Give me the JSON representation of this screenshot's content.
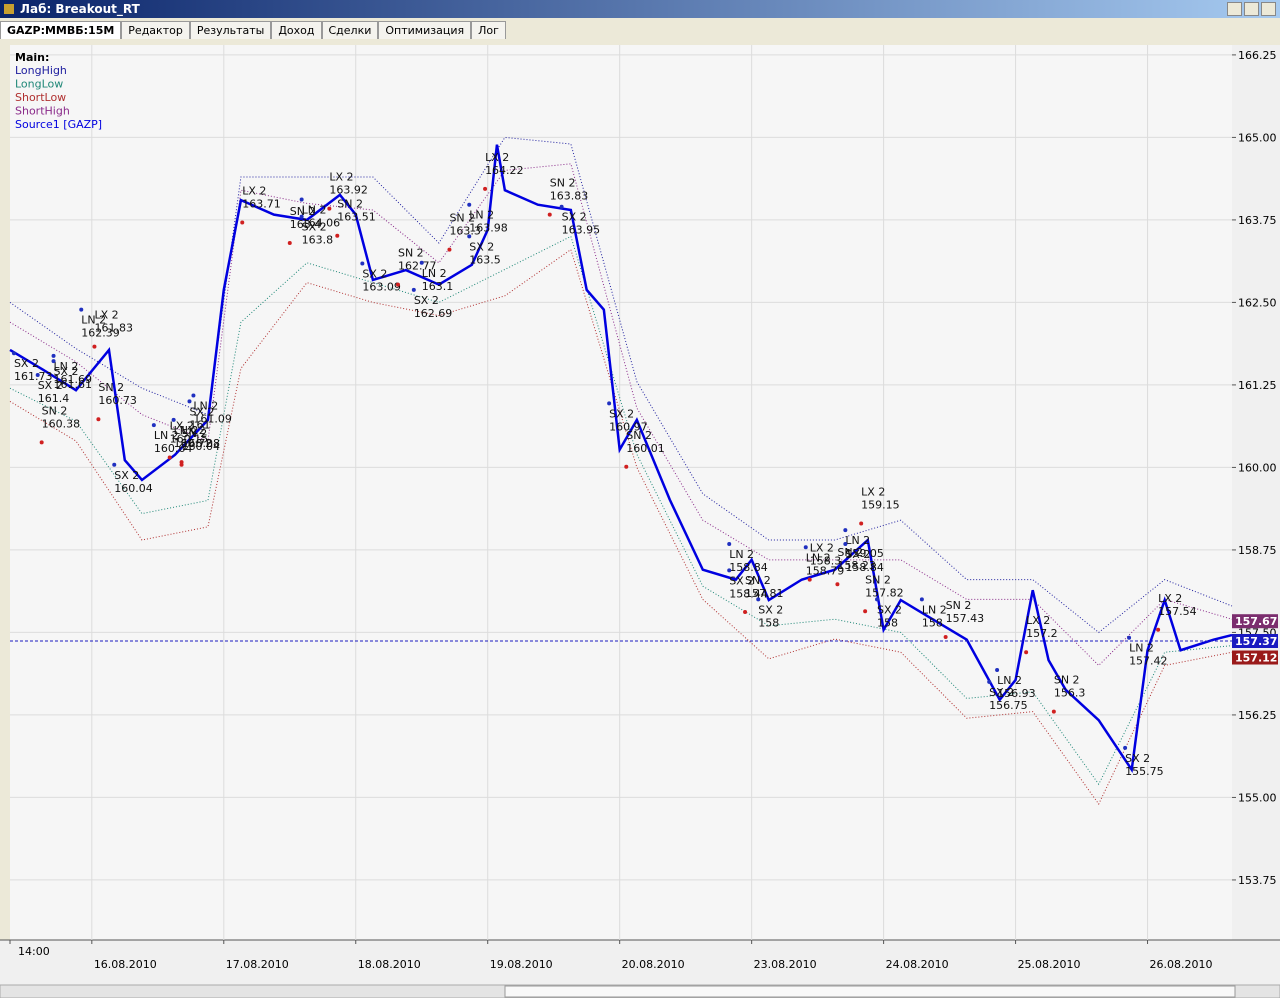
{
  "window": {
    "title": "Лаб: Breakout_RT",
    "tabs": [
      "GAZP:ММВБ:15M",
      "Редактор",
      "Результаты",
      "Доход",
      "Сделки",
      "Оптимизация",
      "Лог"
    ]
  },
  "chart_data": {
    "type": "line",
    "legend_title": "Main:",
    "xlim": [
      -0.62,
      8.64
    ],
    "ylim": [
      152.84,
      166.4
    ],
    "xticks": [
      {
        "value": -0.62,
        "label": "14:00"
      },
      {
        "value": 0,
        "label": "16.08.2010"
      },
      {
        "value": 1,
        "label": "17.08.2010"
      },
      {
        "value": 2,
        "label": "18.08.2010"
      },
      {
        "value": 3,
        "label": "19.08.2010"
      },
      {
        "value": 4,
        "label": "20.08.2010"
      },
      {
        "value": 5,
        "label": "23.08.2010"
      },
      {
        "value": 6,
        "label": "24.08.2010"
      },
      {
        "value": 7,
        "label": "25.08.2010"
      },
      {
        "value": 8,
        "label": "26.08.2010"
      }
    ],
    "yticks": [
      {
        "value": 153.75,
        "label": "153.75"
      },
      {
        "value": 155,
        "label": "155.00"
      },
      {
        "value": 156.25,
        "label": "156.25"
      },
      {
        "value": 157.5,
        "label": "157.50"
      },
      {
        "value": 158.75,
        "label": "158.75"
      },
      {
        "value": 160,
        "label": "160.00"
      },
      {
        "value": 161.25,
        "label": "161.25"
      },
      {
        "value": 162.5,
        "label": "162.50"
      },
      {
        "value": 163.75,
        "label": "163.75"
      },
      {
        "value": 165,
        "label": "165.00"
      },
      {
        "value": 166.25,
        "label": "166.25"
      }
    ],
    "grid": true,
    "series": [
      {
        "name": "LongHigh",
        "color": "#2020a0",
        "dash": true,
        "x": [
          -0.62,
          -0.12,
          0.38,
          0.88,
          1.13,
          1.63,
          2.13,
          2.63,
          3.13,
          3.63,
          4.13,
          4.63,
          5.13,
          5.63,
          6.13,
          6.63,
          7.13,
          7.63,
          8.13,
          8.64
        ],
        "values": [
          162.5,
          161.8,
          161.2,
          160.8,
          164.4,
          164.4,
          164.4,
          163.4,
          165.0,
          164.9,
          161.3,
          159.6,
          158.9,
          158.9,
          159.2,
          158.3,
          158.3,
          157.5,
          158.3,
          157.9
        ]
      },
      {
        "name": "LongLow",
        "color": "#208878",
        "dash": true,
        "x": [
          -0.62,
          -0.12,
          0.38,
          0.88,
          1.13,
          1.63,
          2.13,
          2.63,
          3.13,
          3.63,
          4.13,
          4.63,
          5.13,
          5.63,
          6.13,
          6.63,
          7.13,
          7.63,
          8.13,
          8.64
        ],
        "values": [
          161.2,
          160.7,
          159.3,
          159.5,
          162.2,
          163.1,
          162.8,
          162.5,
          163.0,
          163.5,
          160.2,
          158.2,
          157.6,
          157.7,
          157.5,
          156.5,
          156.6,
          155.2,
          157.2,
          157.3
        ]
      },
      {
        "name": "ShortLow",
        "color": "#b03030",
        "dash": true,
        "x": [
          -0.62,
          -0.12,
          0.38,
          0.88,
          1.13,
          1.63,
          2.13,
          2.63,
          3.13,
          3.63,
          4.13,
          4.63,
          5.13,
          5.63,
          6.13,
          6.63,
          7.13,
          7.63,
          8.13,
          8.64
        ],
        "values": [
          161.0,
          160.4,
          158.9,
          159.1,
          161.5,
          162.8,
          162.5,
          162.3,
          162.6,
          163.3,
          160.0,
          158.0,
          157.1,
          157.4,
          157.2,
          156.2,
          156.3,
          154.9,
          157.0,
          157.2
        ]
      },
      {
        "name": "ShortHigh",
        "color": "#8a2a8a",
        "dash": true,
        "x": [
          -0.62,
          -0.12,
          0.38,
          0.88,
          1.13,
          1.63,
          2.13,
          2.63,
          3.13,
          3.63,
          4.13,
          4.63,
          5.13,
          5.63,
          6.13,
          6.63,
          7.13,
          7.63,
          8.13,
          8.64
        ],
        "values": [
          162.2,
          161.6,
          160.8,
          160.4,
          164.2,
          164.0,
          163.9,
          163.1,
          164.5,
          164.6,
          160.9,
          159.2,
          158.6,
          158.6,
          158.6,
          158.0,
          158.0,
          157.0,
          158.0,
          157.7
        ]
      },
      {
        "name": "Source1 [GAZP]",
        "color": "#0000e0",
        "dash": false,
        "x": [
          -0.62,
          -0.37,
          -0.12,
          0.13,
          0.25,
          0.38,
          0.63,
          0.88,
          1.0,
          1.13,
          1.38,
          1.63,
          1.88,
          2.0,
          2.13,
          2.38,
          2.63,
          2.88,
          3.0,
          3.07,
          3.13,
          3.38,
          3.63,
          3.75,
          3.88,
          4.0,
          4.13,
          4.38,
          4.63,
          4.88,
          5.0,
          5.13,
          5.38,
          5.63,
          5.88,
          6.0,
          6.13,
          6.38,
          6.63,
          6.88,
          7.0,
          7.13,
          7.25,
          7.38,
          7.63,
          7.88,
          8.0,
          8.13,
          8.25,
          8.5,
          8.64
        ],
        "values": [
          161.78,
          161.48,
          161.17,
          161.78,
          160.11,
          159.81,
          160.19,
          160.72,
          162.69,
          164.05,
          163.83,
          163.75,
          164.13,
          163.83,
          162.84,
          162.99,
          162.77,
          163.07,
          163.6,
          164.89,
          164.2,
          163.98,
          163.9,
          162.69,
          162.39,
          160.27,
          160.72,
          159.51,
          158.45,
          158.3,
          158.6,
          157.99,
          158.3,
          158.45,
          158.9,
          157.54,
          157.99,
          157.69,
          157.39,
          156.48,
          156.78,
          158.14,
          157.08,
          156.63,
          156.17,
          155.42,
          157.23,
          157.99,
          157.23,
          157.39,
          157.46
        ]
      }
    ],
    "signals": [
      {
        "x": -0.38,
        "text": "SN 2",
        "value": 160.38
      },
      {
        "x": 0.02,
        "text": "LX 2",
        "value": 161.83
      },
      {
        "x": 0.05,
        "text": "SN 2",
        "value": 160.73
      },
      {
        "x": -0.08,
        "text": "LN 2",
        "value": 162.39
      },
      {
        "x": -0.59,
        "text": "SX 2",
        "value": 161.73
      },
      {
        "x": -0.29,
        "text": "LN 2",
        "value": 161.69
      },
      {
        "x": -0.29,
        "text": "SX 2",
        "value": 161.61
      },
      {
        "x": -0.41,
        "text": "SX 2",
        "value": 161.4
      },
      {
        "x": 0.17,
        "text": "SX 2",
        "value": 160.04
      },
      {
        "x": 0.68,
        "text": "SN 2",
        "value": 160.04
      },
      {
        "x": 0.68,
        "text": "LX 2",
        "value": 160.08
      },
      {
        "x": 0.59,
        "text": "LX 2",
        "value": 160.15
      },
      {
        "x": 0.77,
        "text": "LN 2",
        "value": 161.09
      },
      {
        "x": 0.62,
        "text": "LN 2",
        "value": 160.72
      },
      {
        "x": 0.47,
        "text": "LN 2",
        "value": 160.64
      },
      {
        "x": 0.74,
        "text": "SX 2",
        "value": 161.0
      },
      {
        "x": 1.14,
        "text": "LX 2",
        "value": 163.71
      },
      {
        "x": 1.5,
        "text": "SN 2",
        "value": 163.4
      },
      {
        "x": 1.86,
        "text": "SN 2",
        "value": 163.51
      },
      {
        "x": 1.8,
        "text": "LX 2",
        "value": 163.92
      },
      {
        "x": 1.59,
        "text": "LN 2",
        "value": 164.06
      },
      {
        "x": 1.59,
        "text": "SX 2",
        "value": 163.8
      },
      {
        "x": 2.05,
        "text": "SX 2",
        "value": 163.09
      },
      {
        "x": 2.32,
        "text": "SN 2",
        "value": 162.77
      },
      {
        "x": 2.44,
        "text": "SX 2",
        "value": 162.69
      },
      {
        "x": 2.5,
        "text": "LN 2",
        "value": 163.1
      },
      {
        "x": 2.71,
        "text": "SN 2",
        "value": 163.3
      },
      {
        "x": 2.98,
        "text": "LX 2",
        "value": 164.22
      },
      {
        "x": 3.47,
        "text": "SN 2",
        "value": 163.83
      },
      {
        "x": 2.86,
        "text": "LN 2",
        "value": 163.98
      },
      {
        "x": 2.86,
        "text": "SX 2",
        "value": 163.5
      },
      {
        "x": 3.56,
        "text": "SX 2",
        "value": 163.95
      },
      {
        "x": 4.05,
        "text": "SN 2",
        "value": 160.01
      },
      {
        "x": 3.92,
        "text": "SX 2",
        "value": 160.97
      },
      {
        "x": 5.83,
        "text": "LX 2",
        "value": 159.15
      },
      {
        "x": 5.65,
        "text": "SN 2",
        "value": 158.23
      },
      {
        "x": 5.44,
        "text": "LX 2",
        "value": 158.3
      },
      {
        "x": 5.86,
        "text": "SN 2",
        "value": 157.82
      },
      {
        "x": 4.95,
        "text": "SN 2",
        "value": 157.81
      },
      {
        "x": 4.83,
        "text": "LN 2",
        "value": 158.84
      },
      {
        "x": 4.83,
        "text": "SX 2",
        "value": 158.44
      },
      {
        "x": 5.05,
        "text": "SX 2",
        "value": 158.0
      },
      {
        "x": 5.41,
        "text": "LN 2",
        "value": 158.79
      },
      {
        "x": 5.71,
        "text": "LN 2",
        "value": 159.05
      },
      {
        "x": 5.71,
        "text": "SX 2",
        "value": 158.84
      },
      {
        "x": 6.47,
        "text": "SN 2",
        "value": 157.43
      },
      {
        "x": 6.29,
        "text": "LN 2",
        "value": 158.0
      },
      {
        "x": 5.95,
        "text": "SX 2",
        "value": 158.0
      },
      {
        "x": 7.08,
        "text": "LX 2",
        "value": 157.2
      },
      {
        "x": 7.29,
        "text": "SN 2",
        "value": 156.3
      },
      {
        "x": 6.86,
        "text": "LN 2",
        "value": 156.93
      },
      {
        "x": 6.8,
        "text": "SX 2",
        "value": 156.75
      },
      {
        "x": 8.08,
        "text": "LX 2",
        "value": 157.54
      },
      {
        "x": 7.86,
        "text": "LN 2",
        "value": 157.42
      },
      {
        "x": 7.83,
        "text": "SX 2",
        "value": 155.75
      }
    ],
    "price_labels": [
      {
        "value": 157.67,
        "color": "#7b2d6e"
      },
      {
        "value": 157.37,
        "color": "#1a1ac0"
      },
      {
        "value": 157.12,
        "color": "#9a1a1a"
      }
    ]
  }
}
